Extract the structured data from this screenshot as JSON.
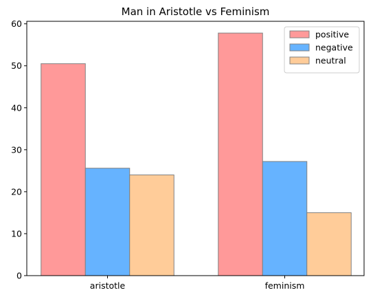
{
  "chart_data": {
    "type": "bar",
    "title": "Man in Aristotle vs Feminism",
    "xlabel": "",
    "ylabel": "",
    "categories": [
      "aristotle",
      "feminism"
    ],
    "series": [
      {
        "name": "positive",
        "color": "#ff9999",
        "values": [
          50.5,
          57.8
        ]
      },
      {
        "name": "negative",
        "color": "#66b3ff",
        "values": [
          25.6,
          27.2
        ]
      },
      {
        "name": "neutral",
        "color": "#ffcc99",
        "values": [
          24.0,
          15.0
        ]
      }
    ],
    "ylim": [
      0,
      60.6
    ],
    "yticks": [
      0,
      10,
      20,
      30,
      40,
      50,
      60
    ],
    "grid": false,
    "legend_position": "top-right",
    "bar_edge_color": "#808080"
  }
}
